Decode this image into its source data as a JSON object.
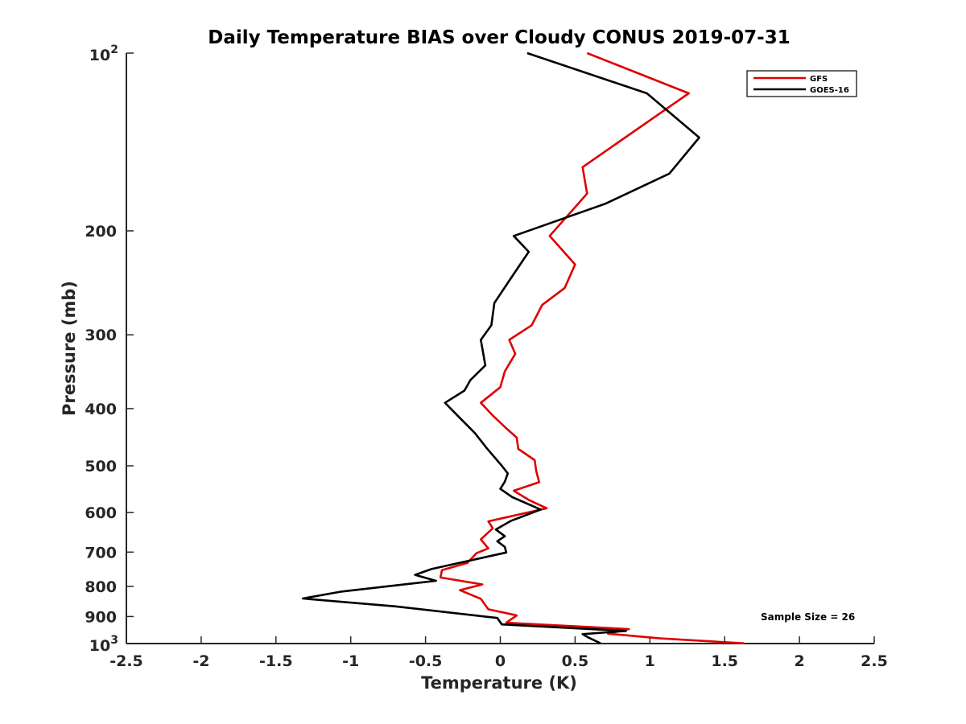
{
  "chart_data": {
    "type": "line",
    "title": "Daily Temperature BIAS over Cloudy CONUS 2019-07-31",
    "xlabel": "Temperature (K)",
    "ylabel": "Pressure (mb)",
    "xlim": [
      -2.5,
      2.5
    ],
    "ylim": [
      100,
      1000
    ],
    "y_scale": "log",
    "y_reversed": true,
    "x_ticks": [
      "-2.5",
      "-2",
      "-1.5",
      "-1",
      "-0.5",
      "0",
      "0.5",
      "1",
      "1.5",
      "2",
      "2.5"
    ],
    "x_tick_values": [
      -2.5,
      -2,
      -1.5,
      -1,
      -0.5,
      0,
      0.5,
      1,
      1.5,
      2,
      2.5
    ],
    "y_ticks": [
      {
        "value": 100,
        "base": "10",
        "exp": "2"
      },
      {
        "value": 200,
        "label": "200"
      },
      {
        "value": 300,
        "label": "300"
      },
      {
        "value": 400,
        "label": "400"
      },
      {
        "value": 500,
        "label": "500"
      },
      {
        "value": 600,
        "label": "600"
      },
      {
        "value": 700,
        "label": "700"
      },
      {
        "value": 800,
        "label": "800"
      },
      {
        "value": 900,
        "label": "900"
      },
      {
        "value": 1000,
        "base": "10",
        "exp": "3"
      }
    ],
    "grid": false,
    "legend_position": "top-right",
    "annotation": "Sample Size = 26",
    "series": [
      {
        "name": "GFS",
        "color": "#e00000",
        "points": [
          [
            0.58,
            100
          ],
          [
            1.26,
            117
          ],
          [
            0.55,
            156
          ],
          [
            0.58,
            173
          ],
          [
            0.33,
            204
          ],
          [
            0.5,
            228
          ],
          [
            0.43,
            250
          ],
          [
            0.28,
            267
          ],
          [
            0.21,
            289
          ],
          [
            0.06,
            306
          ],
          [
            0.1,
            323
          ],
          [
            0.03,
            346
          ],
          [
            0.0,
            368
          ],
          [
            -0.13,
            391
          ],
          [
            -0.05,
            411
          ],
          [
            0.04,
            432
          ],
          [
            0.11,
            448
          ],
          [
            0.12,
            468
          ],
          [
            0.23,
            489
          ],
          [
            0.24,
            510
          ],
          [
            0.26,
            533
          ],
          [
            0.09,
            551
          ],
          [
            0.19,
            571
          ],
          [
            0.31,
            590
          ],
          [
            -0.08,
            621
          ],
          [
            -0.05,
            638
          ],
          [
            -0.13,
            666
          ],
          [
            -0.08,
            690
          ],
          [
            -0.16,
            703
          ],
          [
            -0.22,
            730
          ],
          [
            -0.39,
            751
          ],
          [
            -0.4,
            773
          ],
          [
            -0.12,
            794
          ],
          [
            -0.27,
            812
          ],
          [
            -0.13,
            840
          ],
          [
            -0.08,
            875
          ],
          [
            0.11,
            896
          ],
          [
            0.04,
            922
          ],
          [
            0.86,
            945
          ],
          [
            0.72,
            962
          ],
          [
            1.07,
            980
          ],
          [
            1.63,
            999
          ]
        ]
      },
      {
        "name": "GOES-16",
        "color": "#000000",
        "points": [
          [
            0.18,
            100
          ],
          [
            0.98,
            117
          ],
          [
            1.33,
            139
          ],
          [
            1.13,
            160
          ],
          [
            0.7,
            180
          ],
          [
            0.09,
            204
          ],
          [
            0.19,
            217
          ],
          [
            0.05,
            245
          ],
          [
            -0.04,
            265
          ],
          [
            -0.06,
            289
          ],
          [
            -0.13,
            306
          ],
          [
            -0.1,
            338
          ],
          [
            -0.2,
            358
          ],
          [
            -0.24,
            373
          ],
          [
            -0.37,
            391
          ],
          [
            -0.29,
            410
          ],
          [
            -0.17,
            440
          ],
          [
            -0.09,
            467
          ],
          [
            0.01,
            500
          ],
          [
            0.05,
            515
          ],
          [
            0.03,
            532
          ],
          [
            0.0,
            547
          ],
          [
            0.08,
            565
          ],
          [
            0.27,
            593
          ],
          [
            0.07,
            620
          ],
          [
            -0.03,
            641
          ],
          [
            0.03,
            658
          ],
          [
            -0.02,
            671
          ],
          [
            0.03,
            686
          ],
          [
            0.04,
            701
          ],
          [
            -0.46,
            748
          ],
          [
            -0.57,
            765
          ],
          [
            -0.43,
            783
          ],
          [
            -1.07,
            817
          ],
          [
            -1.32,
            839
          ],
          [
            -0.7,
            865
          ],
          [
            -0.02,
            905
          ],
          [
            0.01,
            928
          ],
          [
            0.84,
            952
          ],
          [
            0.55,
            964
          ],
          [
            0.59,
            977
          ],
          [
            0.67,
            999
          ]
        ]
      }
    ]
  }
}
